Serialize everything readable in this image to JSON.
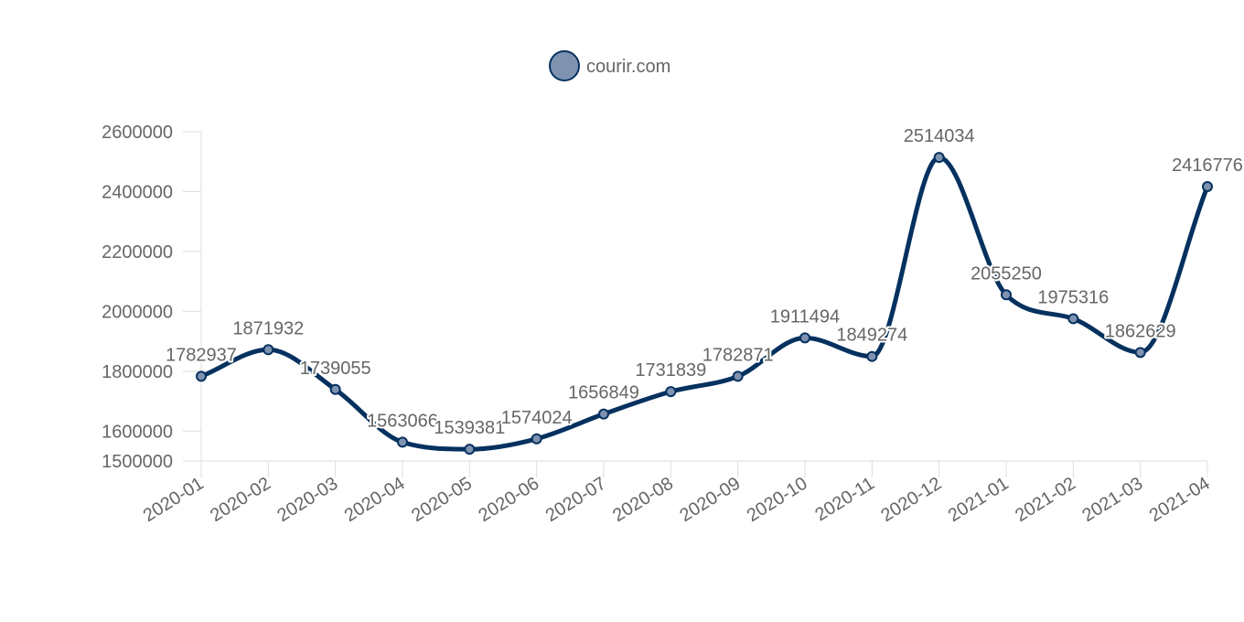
{
  "legend": {
    "label": "courir.com",
    "position": "top-center"
  },
  "colors": {
    "line": "#05315f",
    "marker_fill": "#7f93b1",
    "label_halo": "#ffffff"
  },
  "chart_data": {
    "type": "line",
    "title": "",
    "xlabel": "",
    "ylabel": "",
    "smooth": true,
    "grid": false,
    "categories": [
      "2020-01",
      "2020-02",
      "2020-03",
      "2020-04",
      "2020-05",
      "2020-06",
      "2020-07",
      "2020-08",
      "2020-09",
      "2020-10",
      "2020-11",
      "2020-12",
      "2021-01",
      "2021-02",
      "2021-03",
      "2021-04"
    ],
    "series": [
      {
        "name": "courir.com",
        "values": [
          1782937,
          1871932,
          1739055,
          1563066,
          1539381,
          1574024,
          1656849,
          1731839,
          1782871,
          1911494,
          1849274,
          2514034,
          2055250,
          1975316,
          1862629,
          2416776
        ]
      }
    ],
    "ylim": [
      1500000,
      2600000
    ],
    "yticks": [
      1500000,
      1600000,
      1800000,
      2000000,
      2200000,
      2400000,
      2600000
    ]
  }
}
